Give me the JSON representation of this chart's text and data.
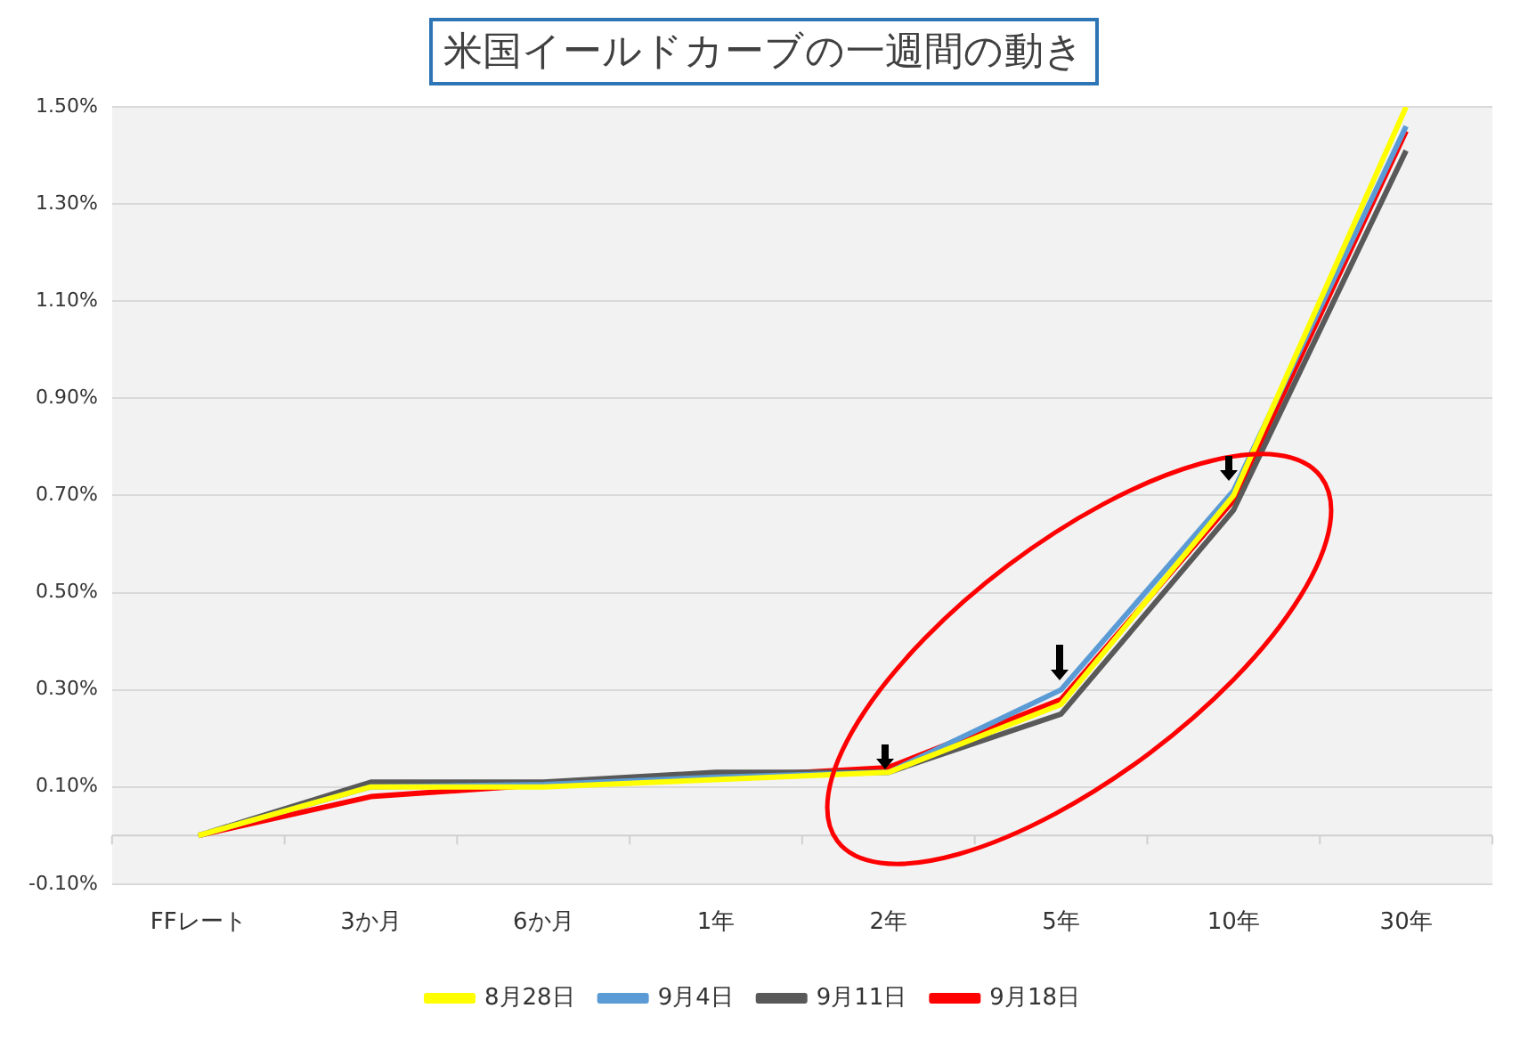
{
  "chart_data": {
    "type": "line",
    "title": "米国イールドカーブの一週間の動き",
    "categories": [
      "FFレート",
      "3か月",
      "6か月",
      "1年",
      "2年",
      "5年",
      "10年",
      "30年"
    ],
    "series": [
      {
        "name": "8月28日",
        "color": "#ffff00",
        "values": [
          0.0,
          0.1,
          0.1,
          0.115,
          0.13,
          0.27,
          0.7,
          1.5
        ]
      },
      {
        "name": "9月4日",
        "color": "#5b9bd5",
        "values": [
          0.0,
          0.1,
          0.105,
          0.12,
          0.13,
          0.3,
          0.71,
          1.46
        ]
      },
      {
        "name": "9月11日",
        "color": "#595959",
        "values": [
          0.0,
          0.11,
          0.11,
          0.13,
          0.13,
          0.25,
          0.67,
          1.41
        ]
      },
      {
        "name": "9月18日",
        "color": "#ff0000",
        "values": [
          0.0,
          0.08,
          0.105,
          0.12,
          0.14,
          0.28,
          0.69,
          1.45
        ]
      }
    ],
    "ylim": [
      -0.1,
      1.5
    ],
    "yticks": [
      {
        "value": -0.1,
        "label": "-0.10%"
      },
      {
        "value": 0.1,
        "label": "0.10%"
      },
      {
        "value": 0.3,
        "label": "0.30%"
      },
      {
        "value": 0.5,
        "label": "0.50%"
      },
      {
        "value": 0.7,
        "label": "0.70%"
      },
      {
        "value": 0.9,
        "label": "0.90%"
      },
      {
        "value": 1.1,
        "label": "1.10%"
      },
      {
        "value": 1.3,
        "label": "1.30%"
      },
      {
        "value": 1.5,
        "label": "1.50%"
      }
    ],
    "grid": "y",
    "legend": "bottom",
    "marker": "none",
    "line_style": "solid"
  }
}
